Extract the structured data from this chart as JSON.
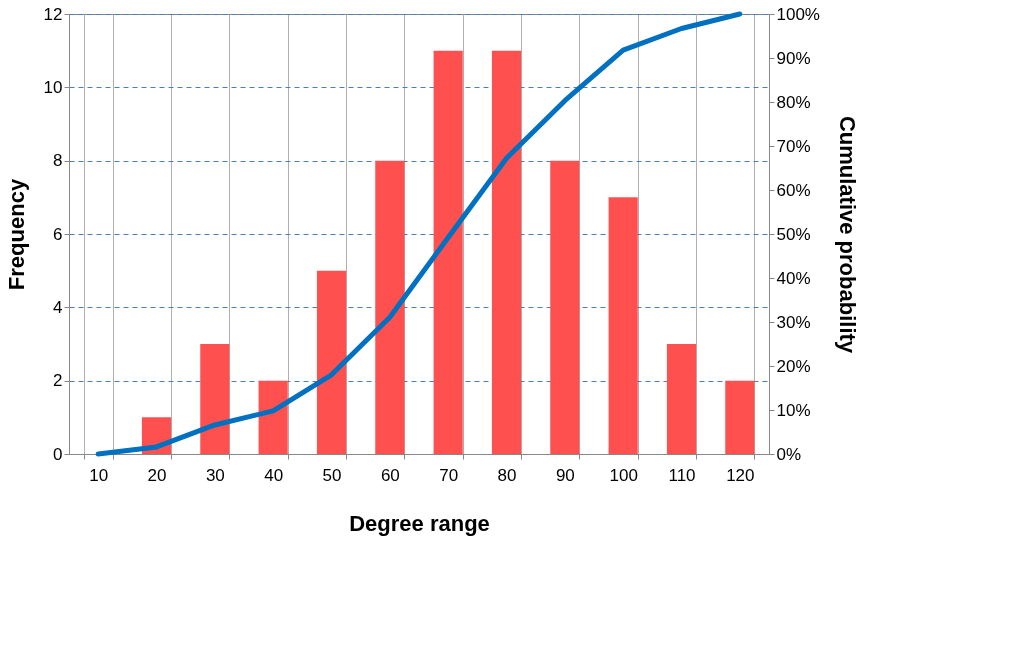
{
  "chart_data": {
    "type": "bar",
    "xlabel": "Degree range",
    "ylabel": "Frequency",
    "y2label": "Cumulative probability",
    "categories": [
      "10",
      "20",
      "30",
      "40",
      "50",
      "60",
      "70",
      "80",
      "90",
      "100",
      "110",
      "120"
    ],
    "series": [
      {
        "color": "#ff5050",
        "values": [
          0,
          1,
          3,
          2,
          5,
          8,
          11,
          11,
          8,
          7,
          3,
          2
        ]
      },
      {
        "type": "line",
        "axis": "y2",
        "color": "#0070c0",
        "values": [
          0,
          1.6,
          6.6,
          9.8,
          18.0,
          31.1,
          49.2,
          67.2,
          80.3,
          91.8,
          96.7,
          100
        ]
      }
    ],
    "ylim": [
      0,
      12
    ],
    "yticks": [
      0,
      2,
      4,
      6,
      8,
      10,
      12
    ],
    "y2lim": [
      0,
      100
    ],
    "y2ticks": [
      {
        "value": 0,
        "label": "0%"
      },
      {
        "value": 10,
        "label": "10%"
      },
      {
        "value": 20,
        "label": "20%"
      },
      {
        "value": 30,
        "label": "30%"
      },
      {
        "value": 40,
        "label": "40%"
      },
      {
        "value": 50,
        "label": "50%"
      },
      {
        "value": 60,
        "label": "60%"
      },
      {
        "value": 70,
        "label": "70%"
      },
      {
        "value": 80,
        "label": "80%"
      },
      {
        "value": 90,
        "label": "90%"
      },
      {
        "value": 100,
        "label": "100%"
      }
    ],
    "grid": true,
    "marker": "none",
    "line_style": "solid"
  }
}
